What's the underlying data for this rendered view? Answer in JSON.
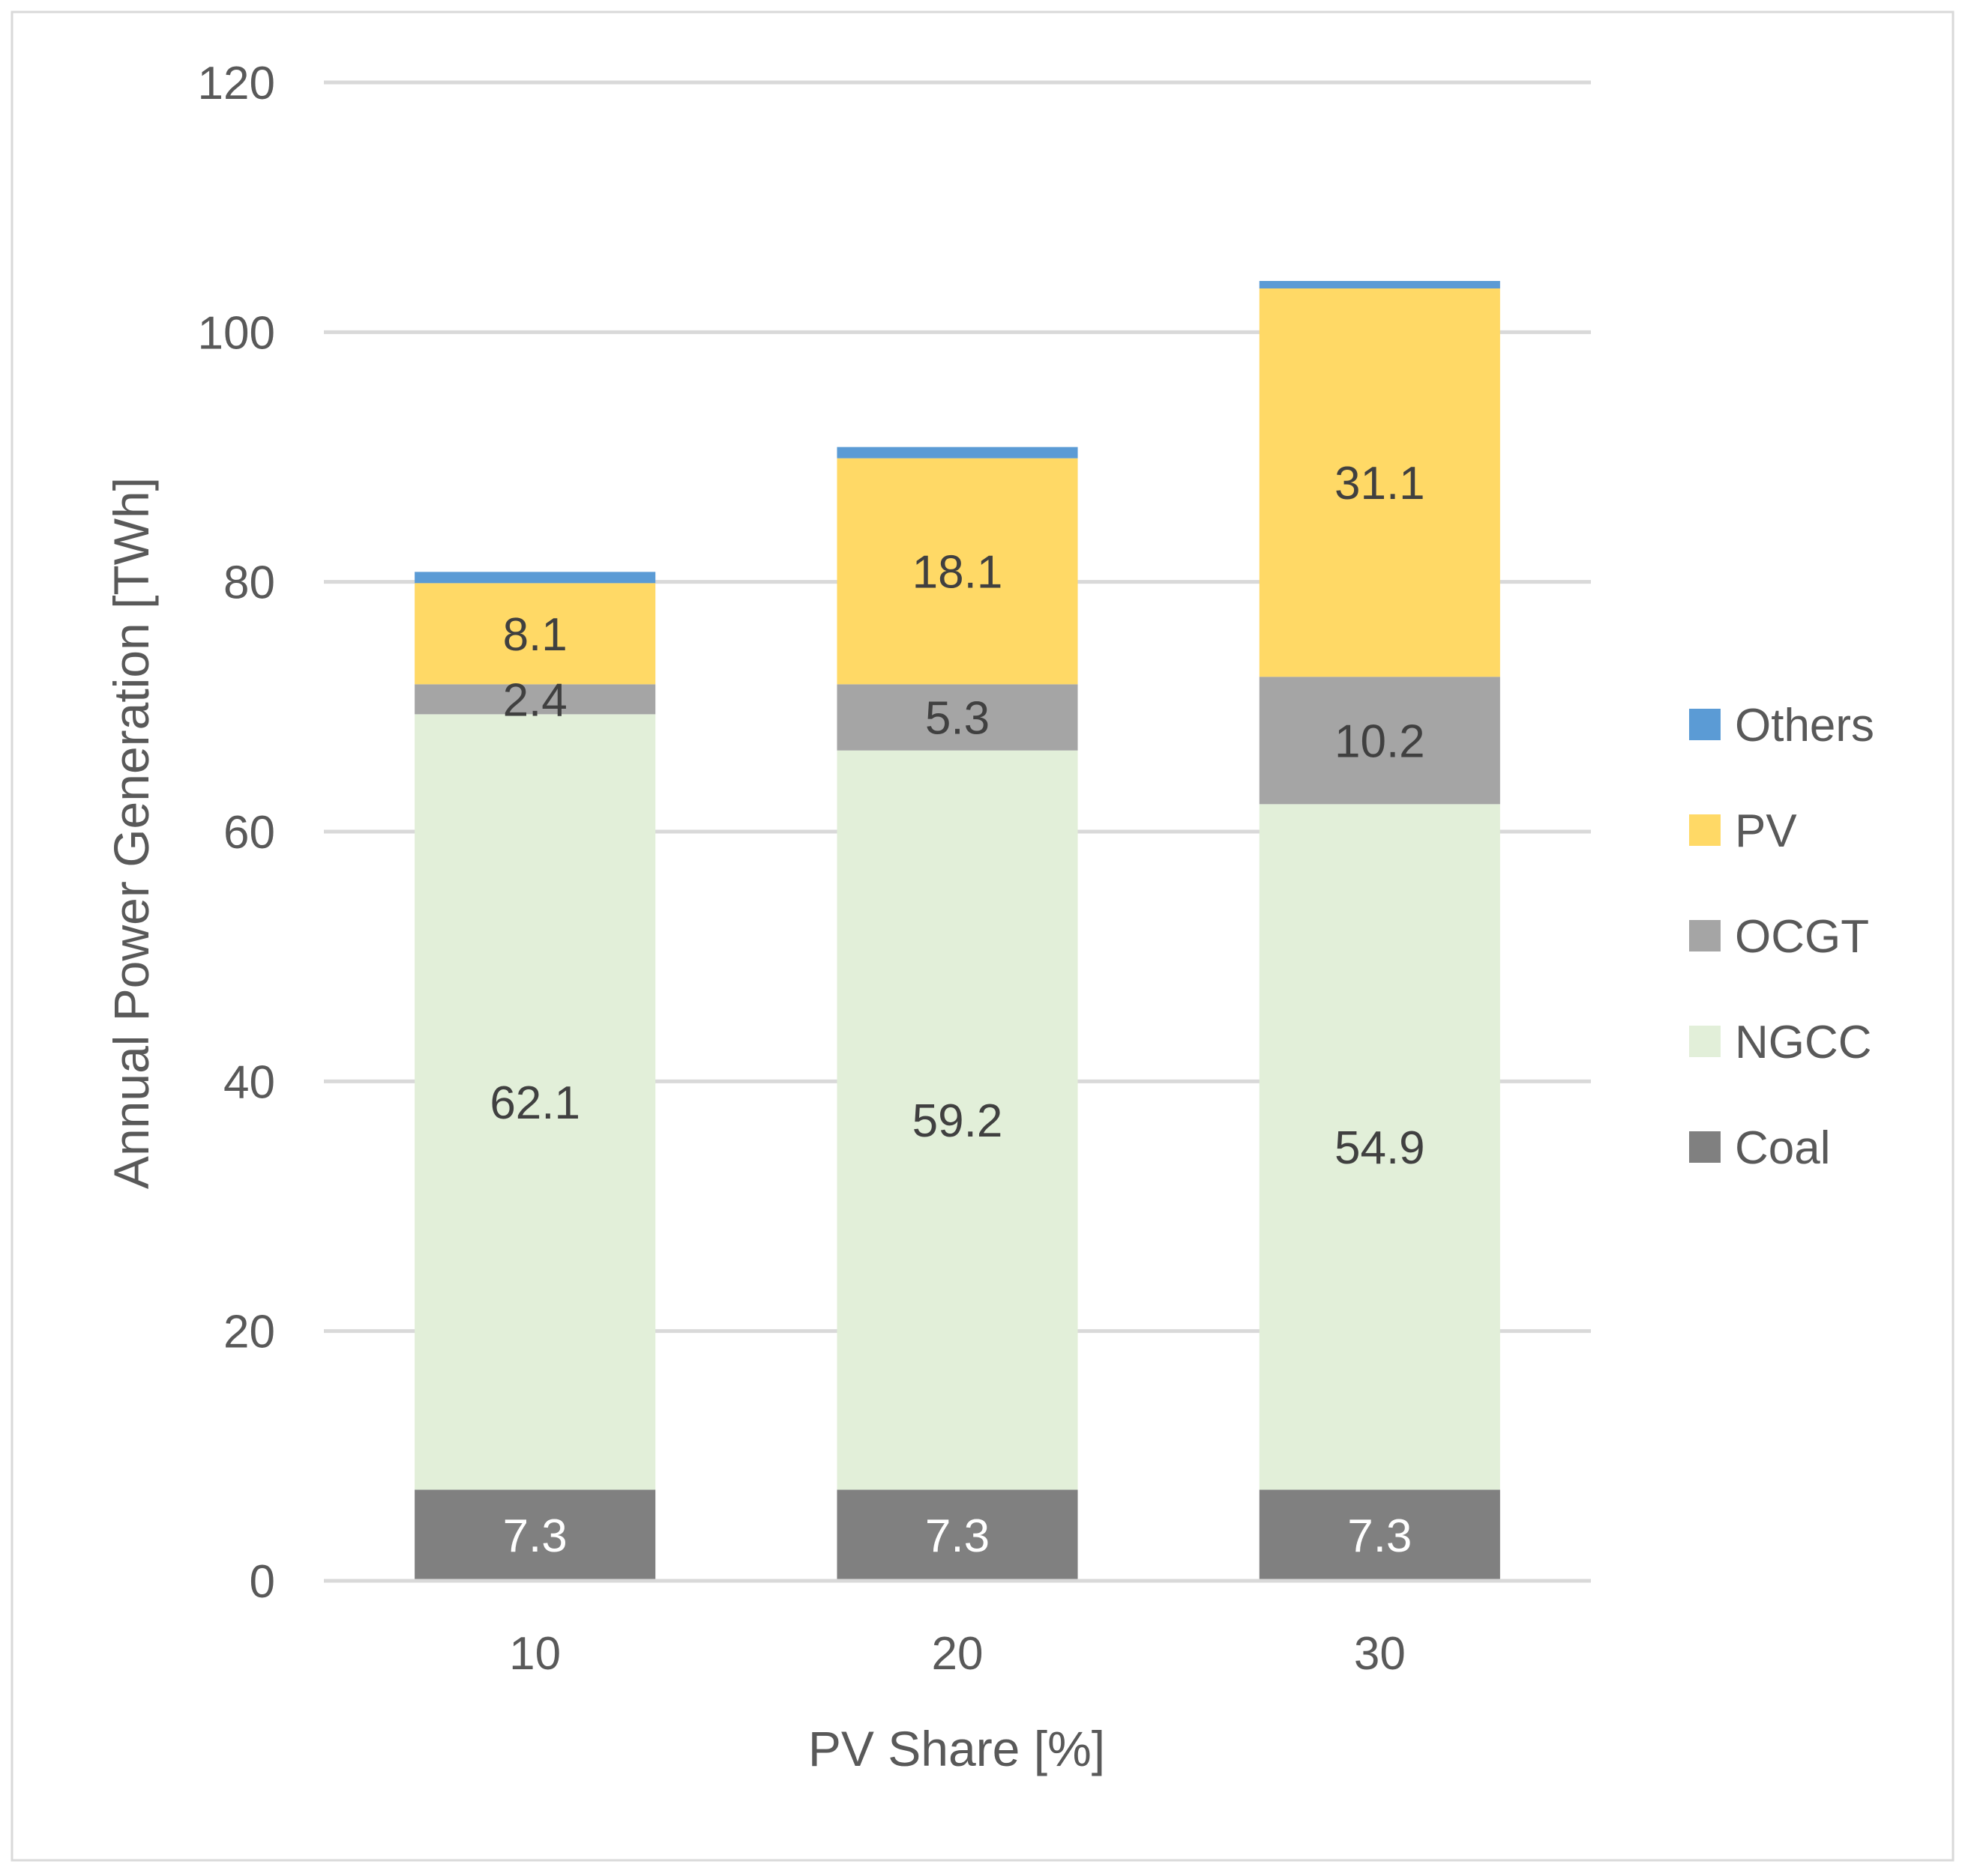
{
  "chart_data": {
    "type": "bar",
    "stacked": true,
    "title": "",
    "xlabel": "PV Share [%]",
    "ylabel": "Annual Power Generation [TWh]",
    "ylim": [
      0,
      120
    ],
    "yticks": [
      0,
      20,
      40,
      60,
      80,
      100,
      120
    ],
    "ytick_labels": [
      "0",
      "20",
      "40",
      "60",
      "80",
      "100",
      "120"
    ],
    "categories": [
      "10",
      "20",
      "30"
    ],
    "grid": true,
    "legend_position": "right",
    "series": [
      {
        "name": "Coal",
        "color": "#808080",
        "label_color": "#ffffff",
        "values": [
          7.3,
          7.3,
          7.3
        ],
        "labels": [
          "7.3",
          "7.3",
          "7.3"
        ]
      },
      {
        "name": "NGCC",
        "color": "#e2efd9",
        "label_color": "#404040",
        "values": [
          62.1,
          59.2,
          54.9
        ],
        "labels": [
          "62.1",
          "59.2",
          "54.9"
        ]
      },
      {
        "name": "OCGT",
        "color": "#a5a5a5",
        "label_color": "#404040",
        "values": [
          2.4,
          5.3,
          10.2
        ],
        "labels": [
          "2.4",
          "5.3",
          "10.2"
        ]
      },
      {
        "name": "PV",
        "color": "#ffd966",
        "label_color": "#404040",
        "values": [
          8.1,
          18.1,
          31.1
        ],
        "labels": [
          "8.1",
          "18.1",
          "31.1"
        ]
      },
      {
        "name": "Others",
        "color": "#5b9bd5",
        "label_color": "#404040",
        "values": [
          0.9,
          0.9,
          0.6
        ],
        "labels": [
          "",
          "",
          ""
        ]
      }
    ],
    "legend_order": [
      "Others",
      "PV",
      "OCGT",
      "NGCC",
      "Coal"
    ]
  }
}
